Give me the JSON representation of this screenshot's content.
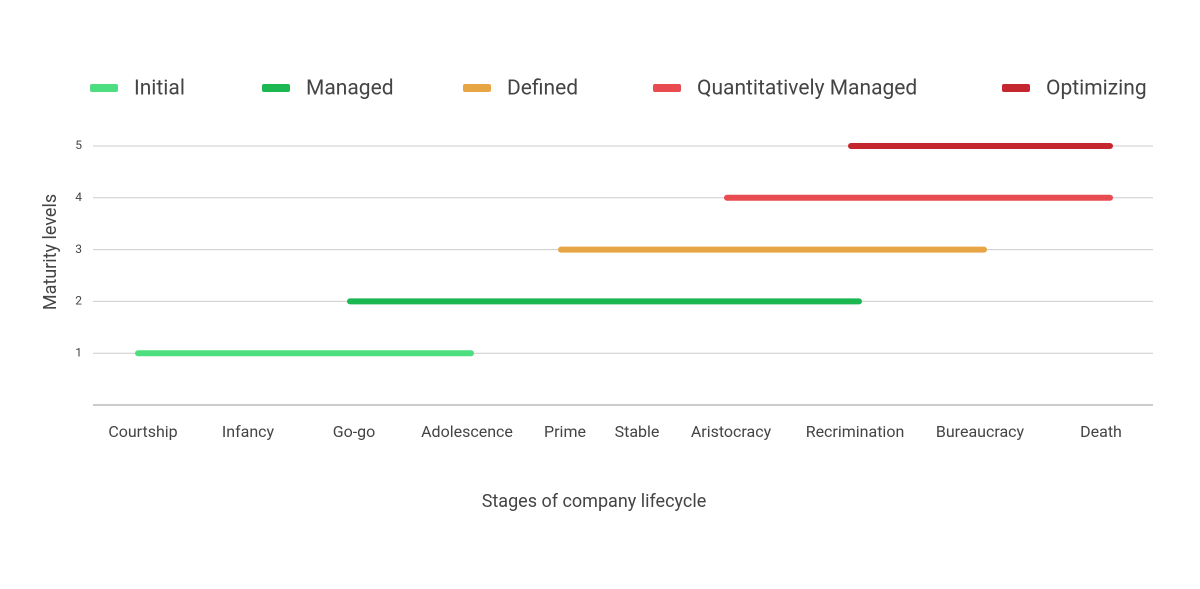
{
  "chart_data": {
    "type": "line",
    "x_label": "Stages of company lifecycle",
    "y_label": "Maturity levels",
    "categories": [
      "Courtship",
      "Infancy",
      "Go-go",
      "Adolescence",
      "Prime",
      "Stable",
      "Aristocracy",
      "Recrimination",
      "Bureaucracy",
      "Death"
    ],
    "series": [
      {
        "name": "Initial",
        "color": "#4ddf7f",
        "values": [
          1,
          1,
          1,
          1,
          null,
          null,
          null,
          null,
          null,
          null
        ]
      },
      {
        "name": "Managed",
        "color": "#1bb751",
        "values": [
          null,
          null,
          2,
          2,
          2,
          2,
          2,
          2,
          null,
          null
        ]
      },
      {
        "name": "Defined",
        "color": "#e8a545",
        "values": [
          null,
          null,
          null,
          null,
          3,
          3,
          3,
          3,
          3,
          null
        ]
      },
      {
        "name": "Quantitatively Managed",
        "color": "#e84b50",
        "values": [
          null,
          null,
          null,
          null,
          null,
          null,
          4,
          4,
          4,
          4
        ]
      },
      {
        "name": "Optimizing",
        "color": "#c4272d",
        "values": [
          null,
          null,
          null,
          null,
          null,
          null,
          null,
          5,
          5,
          5
        ]
      }
    ],
    "ylim": [
      0,
      5
    ],
    "yticks": [
      1,
      2,
      3,
      4,
      5
    ],
    "grid": true
  }
}
